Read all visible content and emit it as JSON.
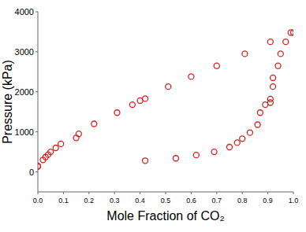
{
  "chart_data": {
    "type": "scatter",
    "x_label": "Mole Fraction of CO₂",
    "y_label": "Pressure (kPa)",
    "x": [
      0.0,
      0.0,
      0.02,
      0.03,
      0.04,
      0.05,
      0.07,
      0.09,
      0.15,
      0.16,
      0.22,
      0.31,
      0.37,
      0.4,
      0.42,
      0.51,
      0.6,
      0.7,
      0.81,
      0.91,
      1.0,
      0.42,
      0.54,
      0.62,
      0.69,
      0.75,
      0.78,
      0.8,
      0.83,
      0.86,
      0.87,
      0.89,
      0.91,
      0.91,
      0.92,
      0.92,
      0.94,
      0.95,
      0.97,
      0.99
    ],
    "values": [
      130,
      150,
      300,
      370,
      430,
      500,
      600,
      700,
      850,
      950,
      1200,
      1480,
      1680,
      1780,
      1830,
      2130,
      2380,
      2650,
      2950,
      3250,
      3480,
      280,
      340,
      420,
      500,
      620,
      730,
      830,
      980,
      1180,
      1480,
      1680,
      1730,
      1820,
      2130,
      2350,
      2650,
      2950,
      3250,
      3480
    ],
    "color": "#d42020",
    "marker": "circle-open",
    "xlim": [
      0,
      1
    ],
    "ylim": [
      -500,
      4000
    ],
    "xticks": [
      {
        "value": 0,
        "label": "0.0"
      },
      {
        "value": 0.1,
        "label": "0.1"
      },
      {
        "value": 0.2,
        "label": "0.2"
      },
      {
        "value": 0.3,
        "label": "0.3"
      },
      {
        "value": 0.4,
        "label": "0.4"
      },
      {
        "value": 0.5,
        "label": "0.5"
      },
      {
        "value": 0.6,
        "label": "0.6"
      },
      {
        "value": 0.7,
        "label": "0.7"
      },
      {
        "value": 0.8,
        "label": "0.8"
      },
      {
        "value": 0.9,
        "label": "0.9"
      },
      {
        "value": 1,
        "label": "1.0"
      }
    ],
    "yticks": [
      0,
      1000,
      2000,
      3000,
      4000
    ],
    "grid": false
  }
}
